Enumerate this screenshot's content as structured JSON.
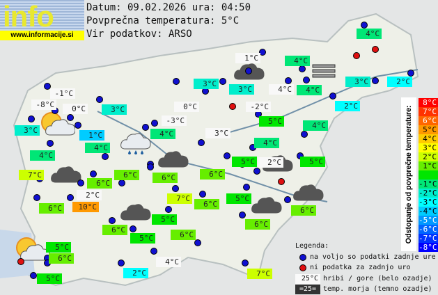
{
  "logo": {
    "text": "info",
    "url": "www.informacije.si"
  },
  "header": {
    "date_line": "Datum: 09.02.2026 ura: 04:50",
    "avg_line": "Povprečna temperatura: 5°C",
    "source_line": "Vir podatkov: ARSO"
  },
  "colors": {
    "white": "#f8f8f8",
    "dev_m4": "#00ccff",
    "dev_m3": "#00ffff",
    "dev_m2": "#00eecc",
    "dev_m1": "#00e676",
    "dev_0": "#00e600",
    "dev_p1": "#66ee00",
    "dev_p2": "#ccff00",
    "dev_p5": "#ff9900",
    "station_ok": "#1010d0",
    "station_missing": "#e01010"
  },
  "stations": [
    {
      "t": "4°C",
      "c": "dev_m1"
    },
    {
      "t": "1°C",
      "c": "white"
    },
    {
      "t": "4°C",
      "c": "dev_m1"
    },
    {
      "t": "3°C",
      "c": "dev_m2"
    },
    {
      "t": "3°C",
      "c": "dev_m2"
    },
    {
      "t": "4°C",
      "c": "white"
    },
    {
      "t": "4°C",
      "c": "dev_m1"
    },
    {
      "t": "3°C",
      "c": "dev_m2"
    },
    {
      "t": "2°C",
      "c": "dev_m3"
    },
    {
      "t": "2°C",
      "c": "dev_m3"
    },
    {
      "t": "-2°C",
      "c": "white"
    },
    {
      "t": "5°C",
      "c": "dev_0"
    },
    {
      "t": "4°C",
      "c": "dev_m1"
    },
    {
      "t": "3°C",
      "c": "white"
    },
    {
      "t": "4°C",
      "c": "dev_m1"
    },
    {
      "t": "5°C",
      "c": "dev_0"
    },
    {
      "t": "2°C",
      "c": "white"
    },
    {
      "t": "5°C",
      "c": "dev_0"
    },
    {
      "t": "-1°C",
      "c": "white"
    },
    {
      "t": "-8°C",
      "c": "white"
    },
    {
      "t": "0°C",
      "c": "white"
    },
    {
      "t": "3°C",
      "c": "dev_m2"
    },
    {
      "t": "1°C",
      "c": "dev_m4"
    },
    {
      "t": "3°C",
      "c": "dev_m2"
    },
    {
      "t": "0°C",
      "c": "white"
    },
    {
      "t": "-3°C",
      "c": "white"
    },
    {
      "t": "4°C",
      "c": "dev_m1"
    },
    {
      "t": "4°C",
      "c": "dev_m1"
    },
    {
      "t": "4°C",
      "c": "dev_m1"
    },
    {
      "t": "7°C",
      "c": "dev_p2"
    },
    {
      "t": "6°C",
      "c": "dev_p1"
    },
    {
      "t": "6°C",
      "c": "dev_p1"
    },
    {
      "t": "6°C",
      "c": "dev_p1"
    },
    {
      "t": "6°C",
      "c": "dev_p1"
    },
    {
      "t": "5°C",
      "c": "dev_0"
    },
    {
      "t": "7°C",
      "c": "dev_p2"
    },
    {
      "t": "6°C",
      "c": "dev_p1"
    },
    {
      "t": "2°C",
      "c": "white"
    },
    {
      "t": "10°C",
      "c": "dev_p5"
    },
    {
      "t": "6°C",
      "c": "dev_p1"
    },
    {
      "t": "6°C",
      "c": "dev_p1"
    },
    {
      "t": "6°C",
      "c": "dev_p1"
    },
    {
      "t": "5°C",
      "c": "dev_0"
    },
    {
      "t": "6°C",
      "c": "dev_p1"
    },
    {
      "t": "5°C",
      "c": "dev_0"
    },
    {
      "t": "6°C",
      "c": "dev_p1"
    },
    {
      "t": "5°C",
      "c": "dev_0"
    },
    {
      "t": "6°C",
      "c": "dev_p1"
    },
    {
      "t": "5°C",
      "c": "dev_0"
    },
    {
      "t": "2°C",
      "c": "dev_m3"
    },
    {
      "t": "4°C",
      "c": "white"
    },
    {
      "t": "7°C",
      "c": "dev_p2"
    }
  ],
  "weather_icons": [
    "partly-cloudy",
    "partly-cloudy",
    "rain",
    "fog",
    "cloudy",
    "cloudy",
    "cloudy",
    "cloudy",
    "cloudy",
    "cloudy",
    "cloudy",
    "cloudy"
  ],
  "scale": {
    "title": "Odstopanje od povprečne temperature:",
    "items": [
      {
        "t": "8°C",
        "bg": "#ff0000",
        "fg": "#ffffff"
      },
      {
        "t": "7°C",
        "bg": "#ff3300",
        "fg": "#ffffff"
      },
      {
        "t": "6°C",
        "bg": "#ff6600",
        "fg": "#ffffff"
      },
      {
        "t": "5°C",
        "bg": "#ff9900",
        "fg": "#000000"
      },
      {
        "t": "4°C",
        "bg": "#ffcc00",
        "fg": "#000000"
      },
      {
        "t": "3°C",
        "bg": "#ffff00",
        "fg": "#000000"
      },
      {
        "t": "2°C",
        "bg": "#ccff00",
        "fg": "#000000"
      },
      {
        "t": "1°C",
        "bg": "#66ee00",
        "fg": "#000000"
      },
      {
        "t": "",
        "bg": "#00e600",
        "fg": "#000000"
      },
      {
        "t": "-1°C",
        "bg": "#00e676",
        "fg": "#000000"
      },
      {
        "t": "-2°C",
        "bg": "#00eecc",
        "fg": "#000000"
      },
      {
        "t": "-3°C",
        "bg": "#00ffff",
        "fg": "#000000"
      },
      {
        "t": "-4°C",
        "bg": "#00ccff",
        "fg": "#000000"
      },
      {
        "t": "-5°C",
        "bg": "#0099ff",
        "fg": "#ffffff"
      },
      {
        "t": "-6°C",
        "bg": "#0066ff",
        "fg": "#ffffff"
      },
      {
        "t": "-7°C",
        "bg": "#0033ff",
        "fg": "#ffffff"
      },
      {
        "t": "-8°C",
        "bg": "#0000ff",
        "fg": "#ffffff"
      }
    ]
  },
  "legend": {
    "title": "Legenda:",
    "ok": "na voljo so podatki zadnje ure",
    "missing": "ni podatka za zadnjo uro",
    "mountain_sample": "25°C",
    "mountain": "hribi / gore (belo ozadje)",
    "sea_sample": "=25=",
    "sea": "temp. morja (temno ozadje)"
  }
}
